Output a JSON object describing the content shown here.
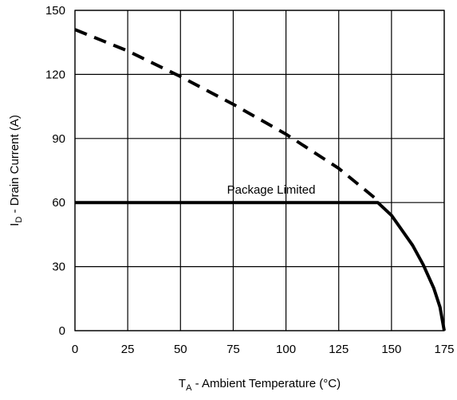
{
  "chart_data": {
    "type": "line",
    "xlabel": {
      "main": "T",
      "sub": "A",
      "rest": " - Ambient Temperature (°C)"
    },
    "ylabel": {
      "main": "I",
      "sub": "D",
      "rest": " - Drain Current (A)"
    },
    "xlim": [
      0,
      175
    ],
    "ylim": [
      0,
      150
    ],
    "xticks": [
      0,
      25,
      50,
      75,
      100,
      125,
      150,
      175
    ],
    "yticks": [
      0,
      30,
      60,
      90,
      120,
      150
    ],
    "grid": true,
    "annotations": [
      {
        "text": "Package Limited",
        "x": 93,
        "y": 66
      }
    ],
    "series": [
      {
        "style": "dashed",
        "x": [
          0,
          25,
          50,
          75,
          100,
          125,
          143.5
        ],
        "y": [
          141,
          131,
          119,
          106,
          92,
          76,
          61
        ]
      },
      {
        "style": "solid",
        "x": [
          0,
          143.5,
          150,
          155,
          160,
          165,
          170,
          173,
          175
        ],
        "y": [
          60,
          60,
          54,
          47,
          40,
          31,
          20,
          11,
          0
        ]
      }
    ]
  }
}
